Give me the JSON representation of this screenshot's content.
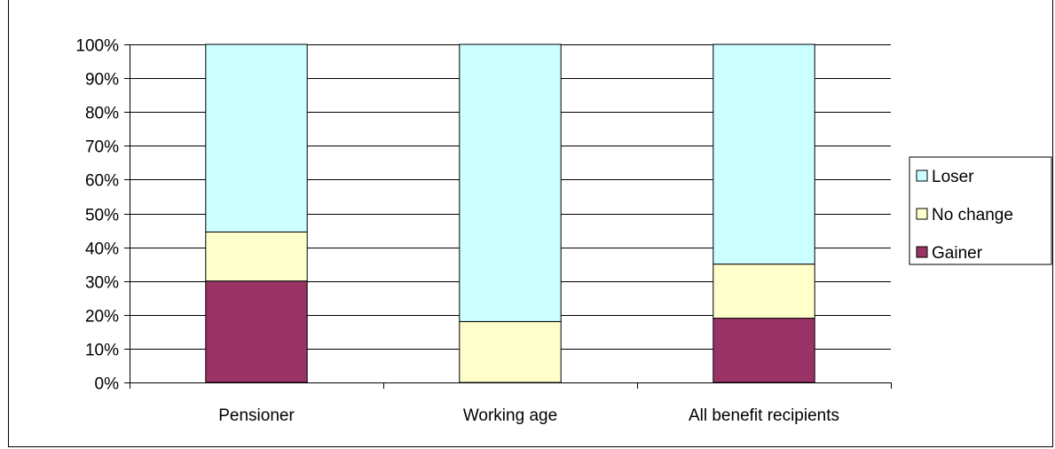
{
  "chart_data": {
    "type": "bar",
    "stacked": true,
    "percent_stacked": true,
    "categories": [
      "Pensioner",
      "Working age",
      "All benefit recipients"
    ],
    "series": [
      {
        "name": "Gainer",
        "values": [
          30,
          0,
          19
        ],
        "color": "#993366"
      },
      {
        "name": "No change",
        "values": [
          14.5,
          18,
          16
        ],
        "color": "#FFFFCC"
      },
      {
        "name": "Loser",
        "values": [
          55.5,
          82,
          65
        ],
        "color": "#CCFFFF"
      }
    ],
    "y_ticks": [
      "0%",
      "10%",
      "20%",
      "30%",
      "40%",
      "50%",
      "60%",
      "70%",
      "80%",
      "90%",
      "100%"
    ],
    "ylim": [
      0,
      100
    ],
    "grid": true,
    "legend_position": "right",
    "legend_order": [
      "Loser",
      "No change",
      "Gainer"
    ]
  }
}
